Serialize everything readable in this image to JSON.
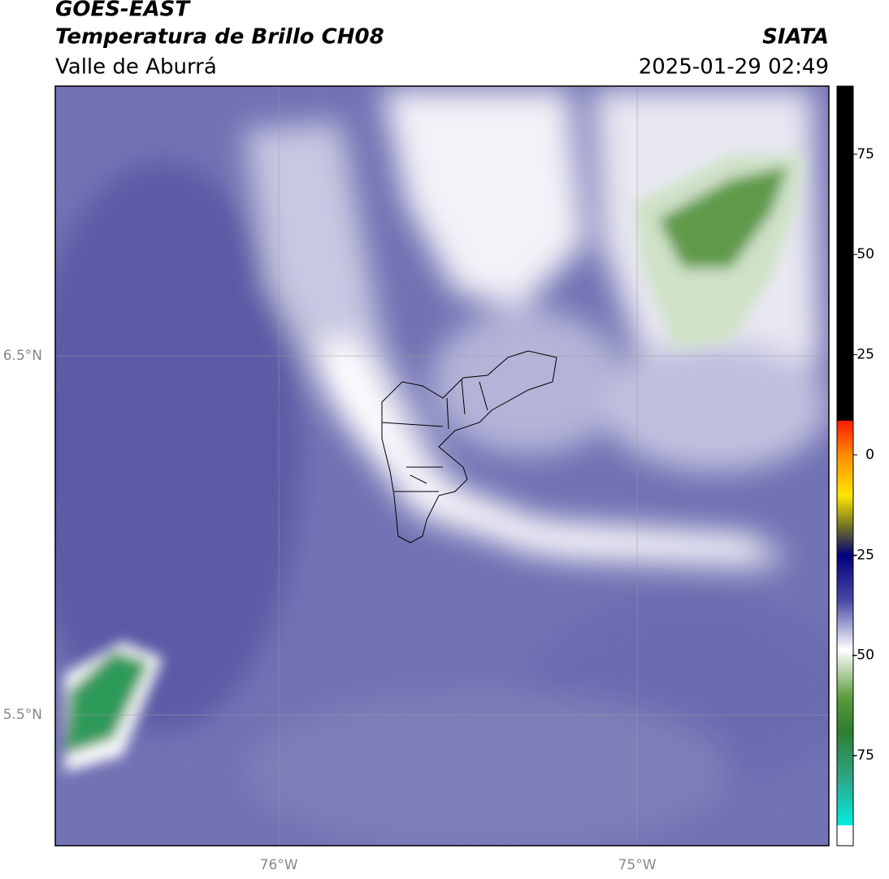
{
  "header": {
    "title": "GOES-EAST",
    "subtitle": "Temperatura de Brillo CH08",
    "region": "Valle de Aburrá",
    "agency": "SIATA",
    "timestamp": "2025-01-29 02:49"
  },
  "map": {
    "xlim": [
      -76.624,
      -74.465
    ],
    "ylim": [
      5.136,
      7.251
    ],
    "xticks": [
      {
        "value": -76,
        "label": "76°W"
      },
      {
        "value": -75,
        "label": "75°W"
      }
    ],
    "yticks": [
      {
        "value": 6.5,
        "label": "6.5°N"
      },
      {
        "value": 5.5,
        "label": "5.5°N"
      }
    ],
    "grid": true
  },
  "colorbar": {
    "lim": [
      -97.5,
      92
    ],
    "ticks": [
      75,
      50,
      25,
      0,
      -25,
      -50,
      -75
    ]
  }
}
